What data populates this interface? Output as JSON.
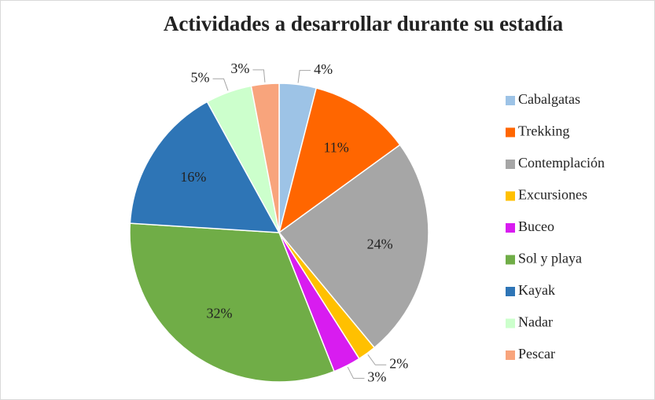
{
  "chart_data": {
    "type": "pie",
    "title": "Actividades a desarrollar durante su estadía",
    "categories": [
      "Cabalgatas",
      "Trekking",
      "Contemplación",
      "Excursiones",
      "Buceo",
      "Sol y playa",
      "Kayak",
      "Nadar",
      "Pescar"
    ],
    "values": [
      4,
      11,
      24,
      2,
      3,
      32,
      16,
      5,
      3
    ],
    "value_labels": [
      "4%",
      "11%",
      "24%",
      "2%",
      "3%",
      "32%",
      "16%",
      "5%",
      "3%"
    ],
    "colors": [
      "#9dc3e6",
      "#ff6600",
      "#a6a6a6",
      "#ffc000",
      "#d81cf0",
      "#70ad47",
      "#2e75b6",
      "#ccffcc",
      "#f8a47c"
    ],
    "legend": "right"
  }
}
